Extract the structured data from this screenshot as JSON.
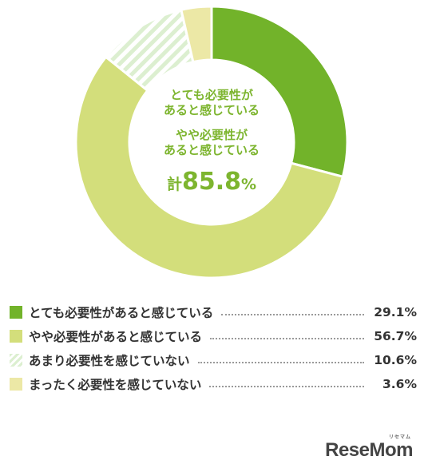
{
  "chart_data": {
    "type": "pie",
    "donut": true,
    "title": "",
    "slices": [
      {
        "label": "とても必要性があると感じている",
        "value": 29.1,
        "value_text": "29.1%",
        "color": "#72b32a",
        "pattern": "solid"
      },
      {
        "label": "やや必要性があると感じている",
        "value": 56.7,
        "value_text": "56.7%",
        "color": "#d3de7b",
        "pattern": "solid"
      },
      {
        "label": "あまり必要性を感じていない",
        "value": 10.6,
        "value_text": "10.6%",
        "color": "#dff0d4",
        "pattern": "striped"
      },
      {
        "label": "まったく必要性を感じていない",
        "value": 3.6,
        "value_text": "3.6%",
        "color": "#ece8a6",
        "pattern": "solid"
      }
    ],
    "center": {
      "line1a": "とても必要性が",
      "line1b": "あると感じている",
      "line2a": "やや必要性が",
      "line2b": "あると感じている",
      "total_prefix": "計",
      "total_value": "85.8",
      "total_suffix": "%"
    }
  },
  "brand": {
    "name": "ReseMom",
    "kana": "リセマム"
  }
}
